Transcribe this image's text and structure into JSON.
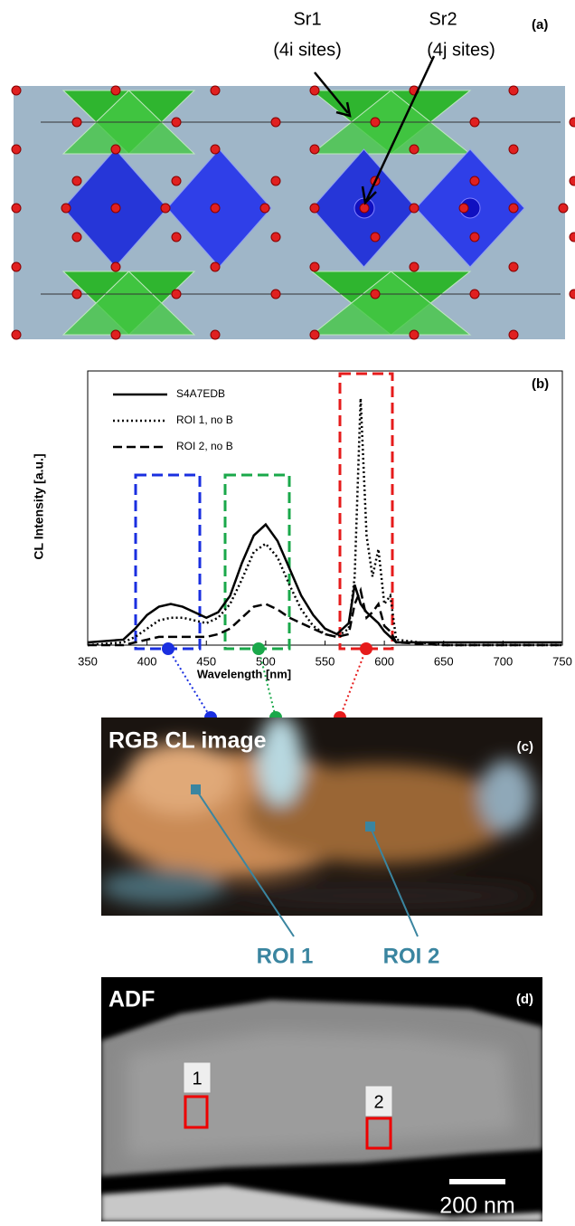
{
  "panel_a": {
    "label": "(a)",
    "sr1": "Sr1",
    "sr1_sites": "(4i sites)",
    "sr2": "Sr2",
    "sr2_sites": "(4j sites)"
  },
  "chart_data": {
    "type": "line",
    "panel_label": "(b)",
    "x_label": "Wavelength [nm]",
    "y_label": "CL Intensity [a.u.]",
    "x": [
      350,
      380,
      390,
      400,
      410,
      420,
      430,
      440,
      450,
      460,
      470,
      480,
      490,
      500,
      510,
      520,
      530,
      540,
      550,
      560,
      570,
      575,
      580,
      585,
      590,
      595,
      600,
      605,
      610,
      650,
      700,
      750
    ],
    "xlim": [
      350,
      750
    ],
    "xticks": [
      350,
      400,
      450,
      500,
      550,
      600,
      650,
      700,
      750
    ],
    "ylim": [
      0,
      100
    ],
    "series": [
      {
        "name": "S4A7EDB",
        "color": "#000000",
        "style": "solid",
        "values": [
          1,
          2,
          6,
          11,
          14,
          15,
          14,
          12,
          10,
          12,
          18,
          30,
          40,
          44,
          38,
          28,
          18,
          11,
          6,
          4,
          8,
          22,
          15,
          12,
          10,
          8,
          5,
          3,
          1,
          1,
          1,
          1
        ]
      },
      {
        "name": "ROI 1, no B",
        "color": "#000000",
        "style": "dotted",
        "values": [
          0,
          1,
          3,
          6,
          9,
          10,
          10,
          9,
          8,
          10,
          15,
          24,
          34,
          37,
          32,
          22,
          13,
          7,
          4,
          3,
          6,
          25,
          90,
          40,
          25,
          35,
          15,
          18,
          2,
          0,
          0,
          0
        ]
      },
      {
        "name": "ROI 2, no B",
        "color": "#000000",
        "style": "dashed",
        "values": [
          0,
          0,
          1,
          2,
          3,
          3,
          3,
          3,
          3,
          4,
          6,
          10,
          14,
          15,
          13,
          10,
          8,
          6,
          4,
          3,
          4,
          15,
          20,
          10,
          12,
          15,
          7,
          5,
          1,
          0,
          0,
          0
        ]
      }
    ]
  },
  "panel_c": {
    "label": "(c)",
    "title": "RGB CL image",
    "roi1": "ROI 1",
    "roi2": "ROI 2"
  },
  "panel_d": {
    "label": "(d)",
    "title": "ADF",
    "box1": "1",
    "box2": "2",
    "scale_bar": "200 nm"
  }
}
